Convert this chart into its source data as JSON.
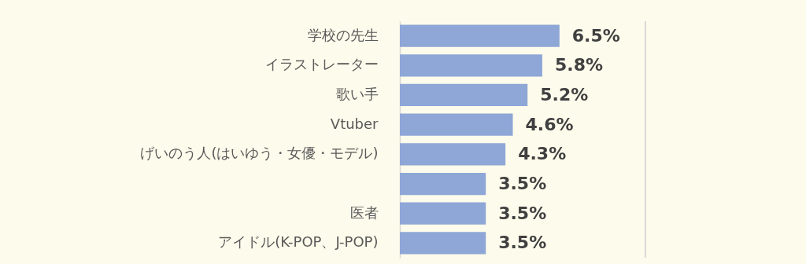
{
  "chart_data": {
    "type": "bar",
    "orientation": "horizontal",
    "categories": [
      "学校の先生",
      "イラストレーター",
      "歌い手",
      "Vtuber",
      "げいのう人(はいゆう・女優・モデル)",
      null,
      "医者",
      "アイドル(K-POP、J-POP)"
    ],
    "values": [
      6.5,
      5.8,
      5.2,
      4.6,
      4.3,
      3.5,
      3.5,
      3.5
    ],
    "value_labels": [
      "6.5%",
      "5.8%",
      "5.2%",
      "4.6%",
      "4.3%",
      "3.5%",
      "3.5%",
      "3.5%"
    ],
    "color": "#8ea7d6",
    "xlim": [
      0,
      10
    ],
    "tick_labels": "y"
  }
}
